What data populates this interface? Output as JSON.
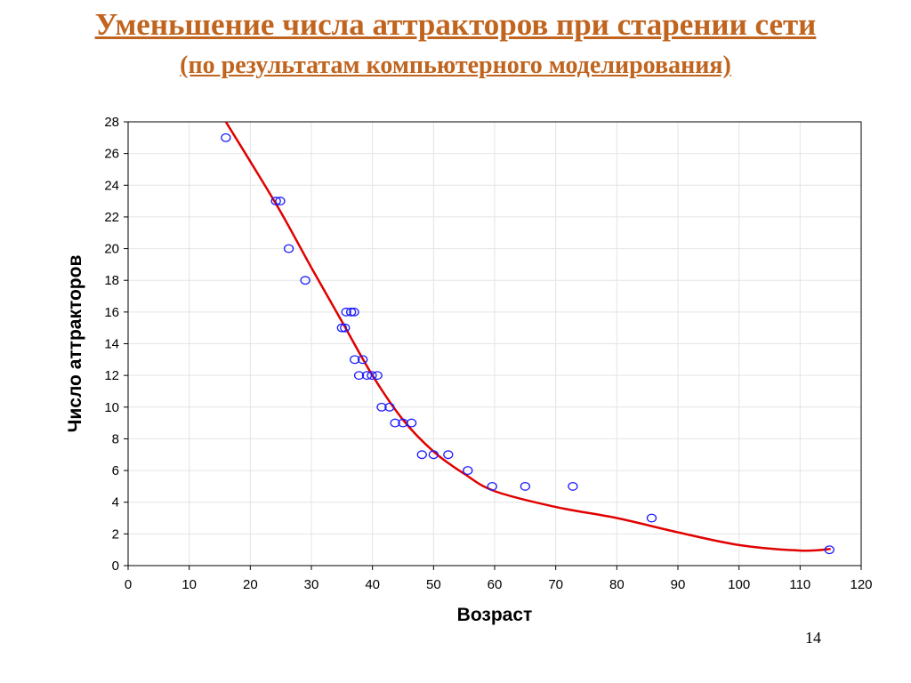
{
  "slide": {
    "title": "Уменьшение числа аттракторов при старении сети",
    "subtitle": "(по результатам компьютерного моделирования)",
    "page_number": "14",
    "title_color": "#c0641e"
  },
  "chart_data": {
    "type": "scatter",
    "title": "",
    "xlabel": "Возраст",
    "ylabel": "Число аттракторов",
    "xlim": [
      0,
      120
    ],
    "ylim": [
      0,
      28
    ],
    "x_ticks": [
      "0",
      "10",
      "20",
      "30",
      "40",
      "50",
      "60",
      "70",
      "80",
      "90",
      "100",
      "110",
      "120"
    ],
    "y_ticks": [
      "0",
      "2",
      "4",
      "6",
      "8",
      "10",
      "12",
      "14",
      "16",
      "18",
      "20",
      "22",
      "24",
      "26",
      "28"
    ],
    "grid": true,
    "point_color": "#1a1aff",
    "curve_color": "#e00000",
    "points": [
      {
        "x": 16,
        "y": 27
      },
      {
        "x": 24.2,
        "y": 23
      },
      {
        "x": 24.9,
        "y": 23
      },
      {
        "x": 26.3,
        "y": 20
      },
      {
        "x": 29,
        "y": 18
      },
      {
        "x": 35,
        "y": 15
      },
      {
        "x": 35.5,
        "y": 15
      },
      {
        "x": 35.7,
        "y": 16
      },
      {
        "x": 36.5,
        "y": 16
      },
      {
        "x": 37,
        "y": 16
      },
      {
        "x": 37.1,
        "y": 13
      },
      {
        "x": 37.8,
        "y": 12
      },
      {
        "x": 38.4,
        "y": 13
      },
      {
        "x": 39.1,
        "y": 12
      },
      {
        "x": 39.9,
        "y": 12
      },
      {
        "x": 40.8,
        "y": 12
      },
      {
        "x": 41.5,
        "y": 10
      },
      {
        "x": 42.8,
        "y": 10
      },
      {
        "x": 43.7,
        "y": 9
      },
      {
        "x": 45,
        "y": 9
      },
      {
        "x": 46.4,
        "y": 9
      },
      {
        "x": 48.1,
        "y": 7
      },
      {
        "x": 50,
        "y": 7
      },
      {
        "x": 52.4,
        "y": 7
      },
      {
        "x": 55.6,
        "y": 6
      },
      {
        "x": 59.6,
        "y": 5
      },
      {
        "x": 65,
        "y": 5
      },
      {
        "x": 72.8,
        "y": 5
      },
      {
        "x": 85.7,
        "y": 3
      },
      {
        "x": 114.8,
        "y": 1
      }
    ],
    "trend": [
      {
        "x": 16,
        "y": 28
      },
      {
        "x": 20,
        "y": 25.5
      },
      {
        "x": 25,
        "y": 22.3
      },
      {
        "x": 30,
        "y": 18.8
      },
      {
        "x": 35,
        "y": 15.4
      },
      {
        "x": 40,
        "y": 12
      },
      {
        "x": 45,
        "y": 9.2
      },
      {
        "x": 50,
        "y": 7.2
      },
      {
        "x": 55,
        "y": 5.8
      },
      {
        "x": 60,
        "y": 4.7
      },
      {
        "x": 70,
        "y": 3.7
      },
      {
        "x": 80,
        "y": 3.0
      },
      {
        "x": 90,
        "y": 2.1
      },
      {
        "x": 100,
        "y": 1.3
      },
      {
        "x": 110,
        "y": 0.95
      },
      {
        "x": 115,
        "y": 1.05
      }
    ]
  }
}
